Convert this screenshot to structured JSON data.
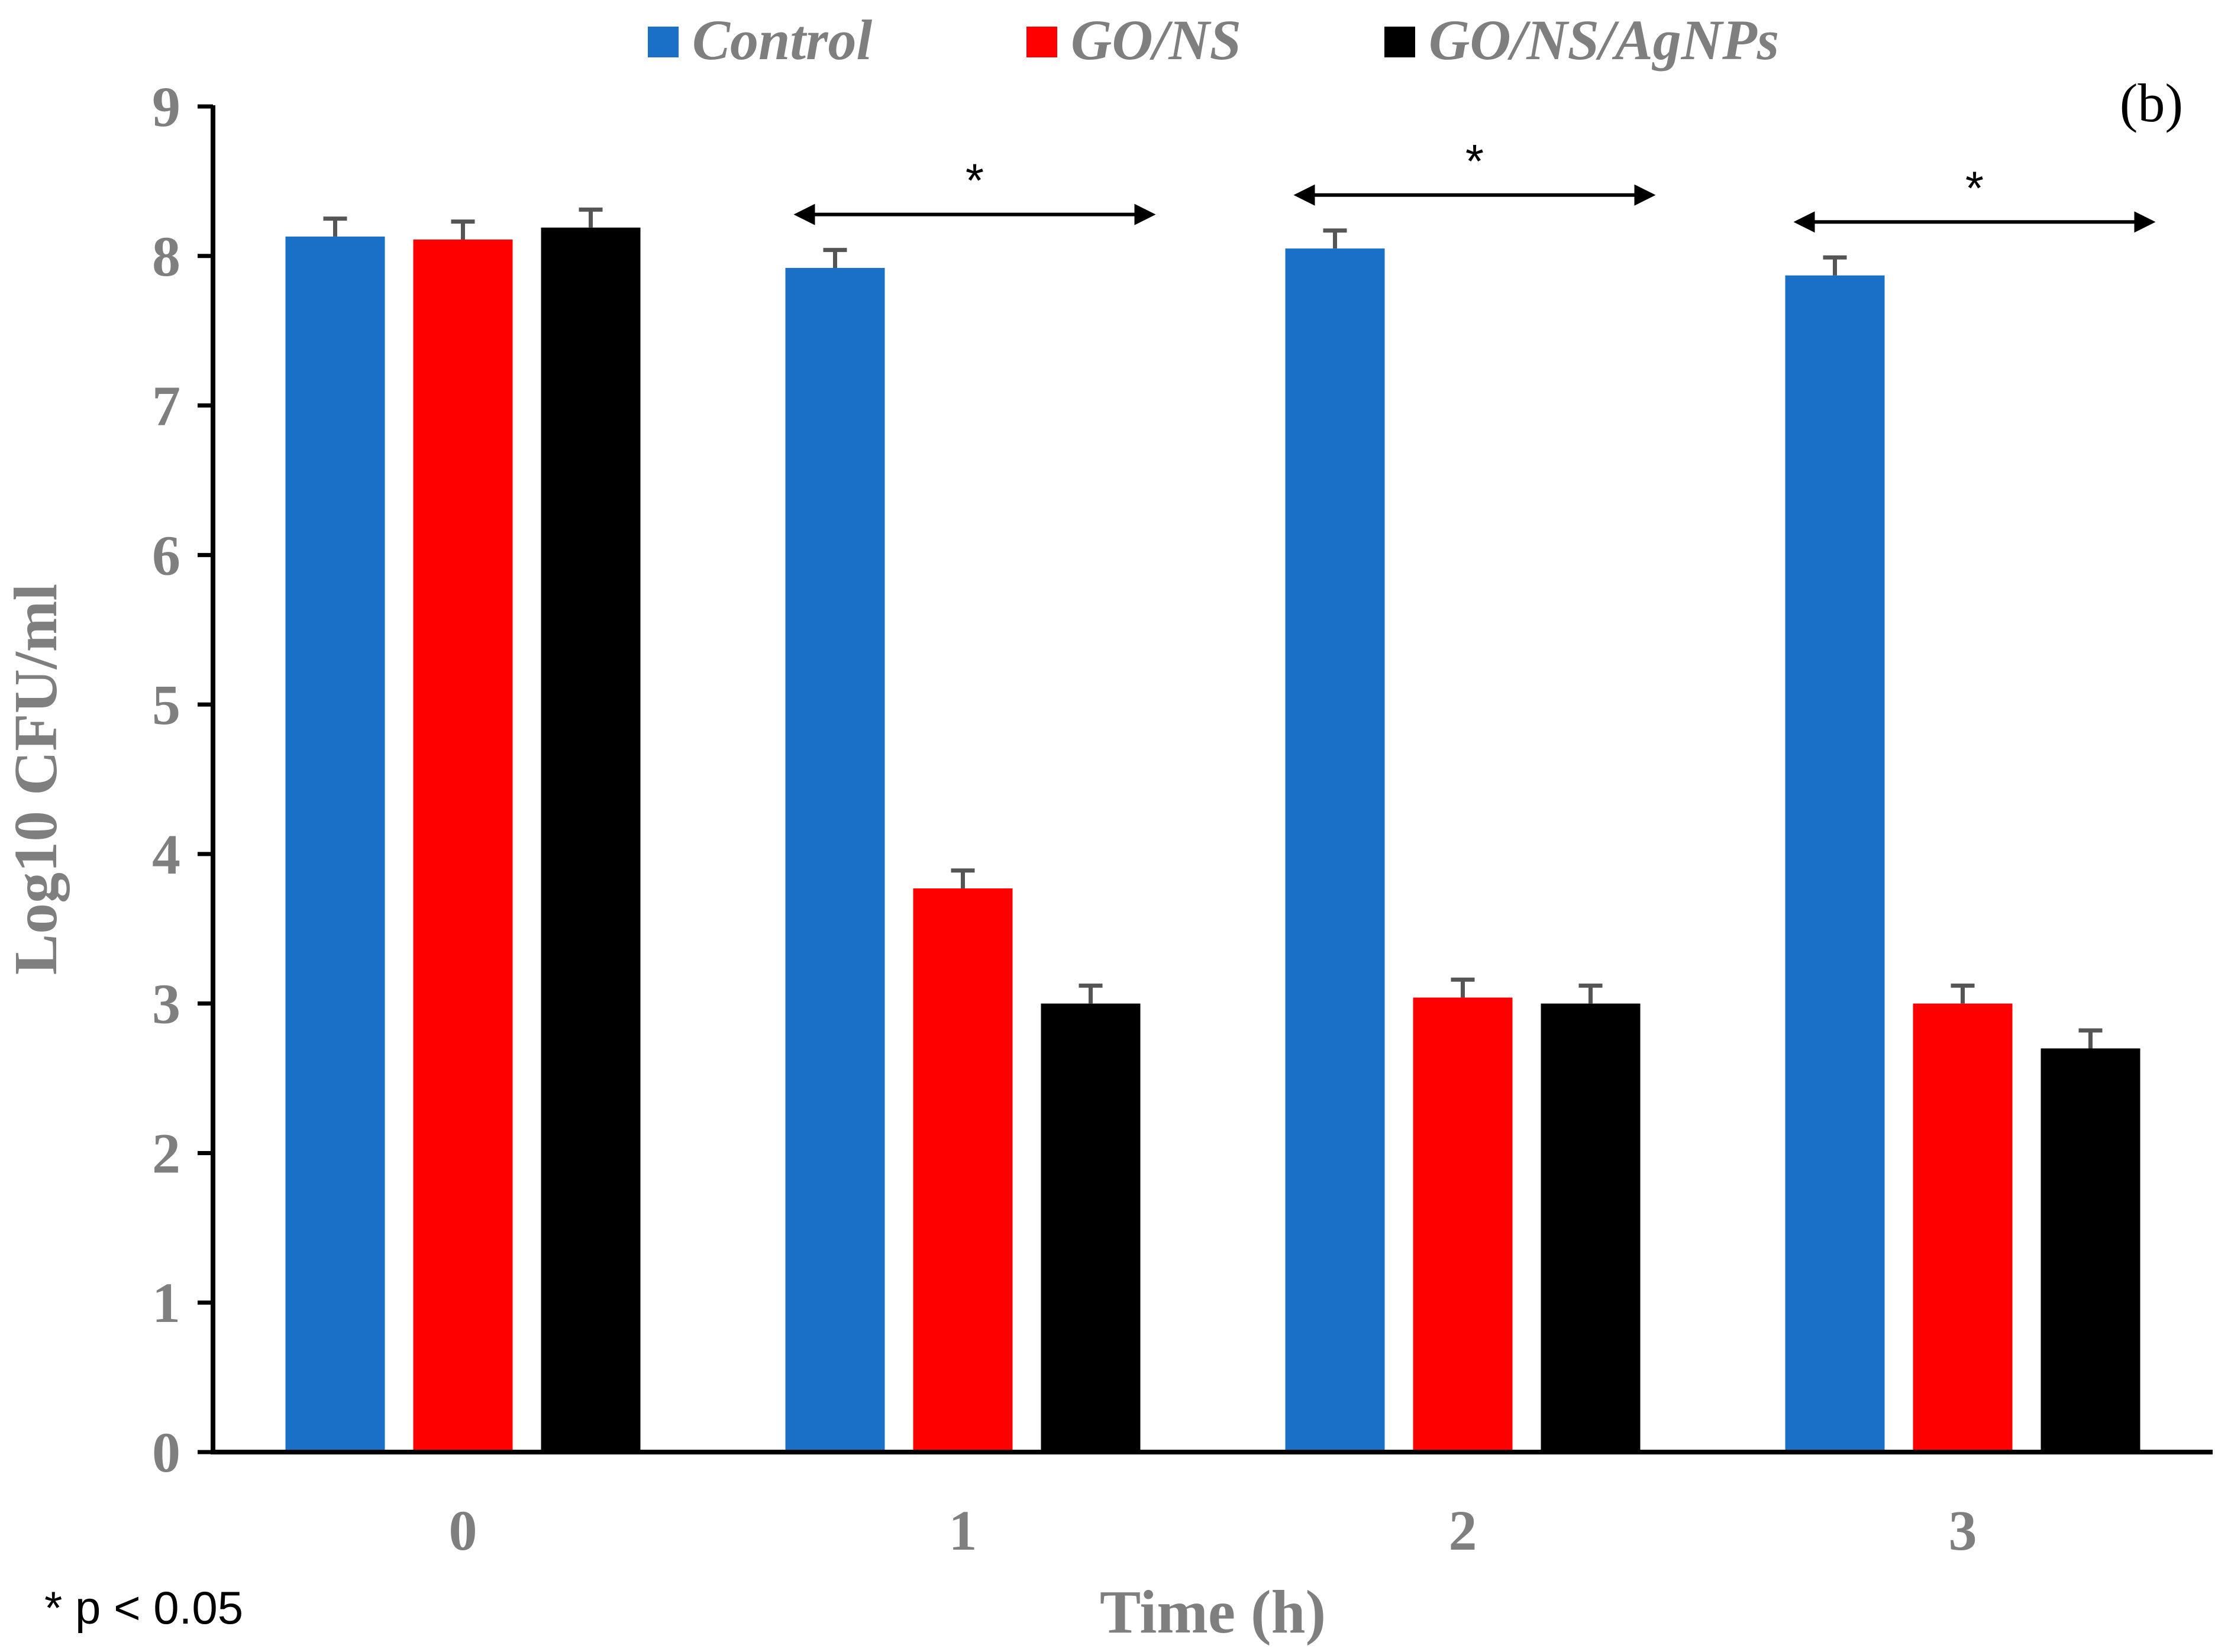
{
  "chart_data": {
    "type": "bar",
    "panel_label": "(b)",
    "xlabel": "Time (h)",
    "ylabel": "Log10 CFU/ml",
    "ylim": [
      0,
      9
    ],
    "yticks": [
      "0",
      "1",
      "2",
      "3",
      "4",
      "5",
      "6",
      "7",
      "8",
      "9"
    ],
    "categories": [
      "0",
      "1",
      "2",
      "3"
    ],
    "legend_position": "top",
    "series": [
      {
        "name": "Control",
        "color": "#1a70c6",
        "values": [
          8.13,
          7.92,
          8.05,
          7.87
        ],
        "errors": [
          0.12,
          0.12,
          0.12,
          0.12
        ]
      },
      {
        "name": "GO/NS",
        "color": "#ff0000",
        "values": [
          8.11,
          3.77,
          3.04,
          3.0
        ],
        "errors": [
          0.12,
          0.12,
          0.12,
          0.12
        ]
      },
      {
        "name": "GO/NS/AgNPs",
        "color": "#000000",
        "values": [
          8.19,
          3.0,
          3.0,
          2.7
        ],
        "errors": [
          0.12,
          0.12,
          0.12,
          0.12
        ]
      }
    ],
    "significance": [
      {
        "category": "1",
        "label": "*"
      },
      {
        "category": "2",
        "label": "*"
      },
      {
        "category": "3",
        "label": "*"
      }
    ],
    "footnote": "* p < 0.05"
  }
}
